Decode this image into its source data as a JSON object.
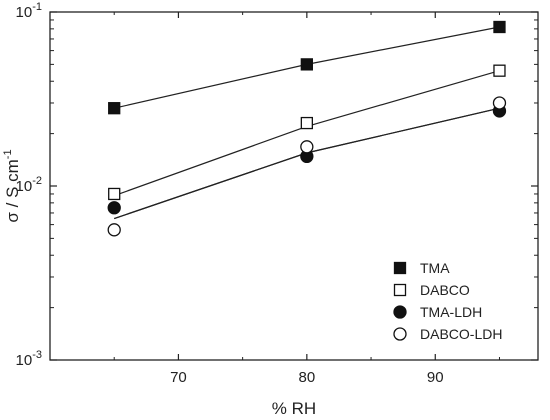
{
  "chart_data": {
    "type": "scatter",
    "xlabel": "% RH",
    "ylabel_base": "σ / S cm",
    "ylabel_exp": "-1",
    "xlim": [
      60,
      98
    ],
    "ylim": [
      0.001,
      0.1
    ],
    "yscale": "log",
    "x_ticks": [
      70,
      80,
      90
    ],
    "x_tick_labels": [
      "70",
      "80",
      "90"
    ],
    "y_ticks": [
      0.001,
      0.01,
      0.1
    ],
    "y_tick_labels": [
      {
        "base": "10",
        "exp": "-3"
      },
      {
        "base": "10",
        "exp": "-2"
      },
      {
        "base": "10",
        "exp": "-1"
      }
    ],
    "grid": false,
    "legend_position": "bottom-right",
    "series": [
      {
        "name": "TMA",
        "marker": "square-filled",
        "x": [
          65,
          80,
          95
        ],
        "y": [
          0.028,
          0.05,
          0.082
        ],
        "fit": [
          0.028,
          0.05,
          0.082
        ]
      },
      {
        "name": "DABCO",
        "marker": "square-open",
        "x": [
          65,
          80,
          95
        ],
        "y": [
          0.009,
          0.023,
          0.046
        ],
        "fit": [
          0.0088,
          0.022,
          0.046
        ]
      },
      {
        "name": "TMA-LDH",
        "marker": "circle-filled",
        "x": [
          65,
          80,
          95
        ],
        "y": [
          0.0075,
          0.0148,
          0.027
        ],
        "fit": [
          0.0065,
          0.0155,
          0.028
        ]
      },
      {
        "name": "DABCO-LDH",
        "marker": "circle-open",
        "x": [
          65,
          80,
          95
        ],
        "y": [
          0.0056,
          0.0168,
          0.03
        ],
        "fit": [
          0.0065,
          0.0155,
          0.028
        ]
      }
    ]
  }
}
